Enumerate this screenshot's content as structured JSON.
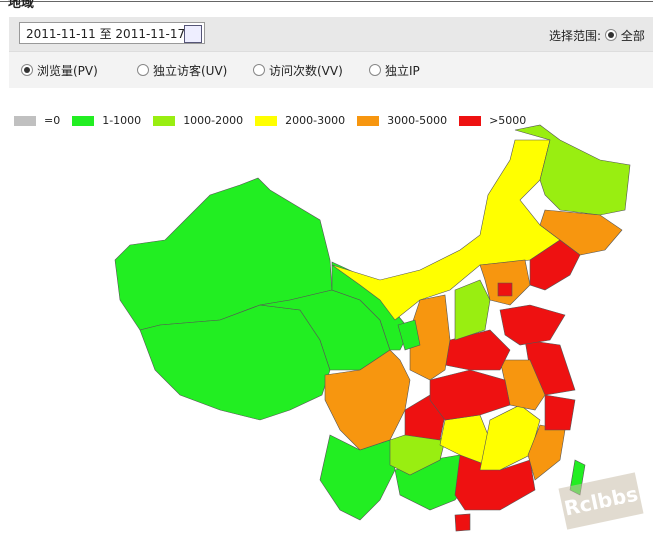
{
  "header": {
    "title": "地域"
  },
  "toolbar": {
    "date_start": "2011-11-11",
    "date_sep": "至",
    "date_end": "2011-11-17",
    "range_label": "选择范围:",
    "range_option": "全部"
  },
  "metrics": [
    "浏览量(PV)",
    "独立访客(UV)",
    "访问次数(VV)",
    "独立IP"
  ],
  "legend": [
    {
      "label": "=0",
      "color": "#c0c0c0"
    },
    {
      "label": "1-1000",
      "color": "#22ee22"
    },
    {
      "label": "1000-2000",
      "color": "#99ee11"
    },
    {
      "label": "2000-3000",
      "color": "#ffff00"
    },
    {
      "label": "3000-5000",
      "color": "#f7960f"
    },
    {
      "label": ">5000",
      "color": "#ee1111"
    }
  ],
  "watermark": "Rclbbs"
}
